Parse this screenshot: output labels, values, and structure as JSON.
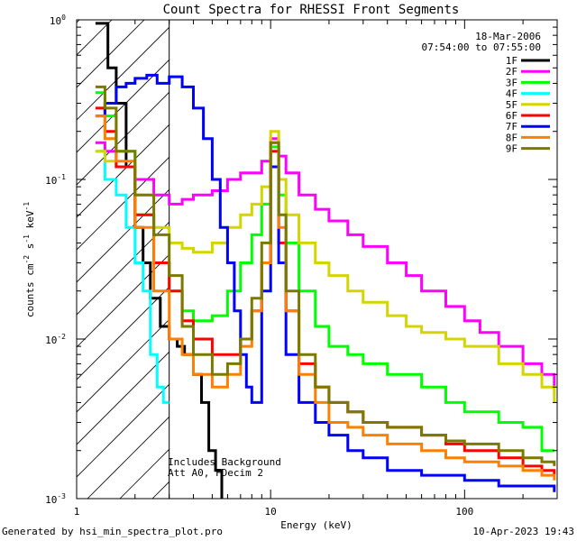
{
  "chart_data": {
    "type": "line",
    "title": "Count Spectra for RHESSI Front Segments",
    "xlabel": "Energy (keV)",
    "ylabel_parts": [
      "counts cm",
      "-2",
      " s",
      "-1",
      " keV",
      "-1"
    ],
    "xscale": "log",
    "yscale": "log",
    "xlim": [
      1.0,
      300.0
    ],
    "ylim": [
      0.001,
      1.0
    ],
    "x_ticks": [
      {
        "value": 1,
        "label": "1"
      },
      {
        "value": 10,
        "label": "10"
      },
      {
        "value": 100,
        "label": "100"
      }
    ],
    "y_ticks": [
      {
        "value": 1,
        "label": "10",
        "exp": "0"
      },
      {
        "value": 0.1,
        "label": "10",
        "exp": "-1"
      },
      {
        "value": 0.01,
        "label": "10",
        "exp": "-2"
      },
      {
        "value": 0.001,
        "label": "10",
        "exp": "-3"
      }
    ],
    "date": "18-Mar-2006",
    "time_range": "07:54:00 to 07:55:00",
    "hatched_region_keV": [
      1.0,
      3.0
    ],
    "annotations": [
      "Includes Background",
      "Att A0, FDecim 2"
    ],
    "legend_position": "top-right",
    "series": [
      {
        "name": "1F",
        "color": "#000000",
        "points": [
          [
            1.25,
            0.95
          ],
          [
            1.35,
            0.95
          ],
          [
            1.45,
            0.5
          ],
          [
            1.6,
            0.3
          ],
          [
            1.8,
            0.12
          ],
          [
            2.0,
            0.05
          ],
          [
            2.2,
            0.03
          ],
          [
            2.4,
            0.018
          ],
          [
            2.7,
            0.012
          ],
          [
            3.0,
            0.01
          ],
          [
            3.3,
            0.009
          ],
          [
            3.6,
            0.008
          ],
          [
            4.0,
            0.006
          ],
          [
            4.4,
            0.004
          ],
          [
            4.8,
            0.002
          ],
          [
            5.2,
            0.0015
          ],
          [
            5.6,
            0.001
          ]
        ]
      },
      {
        "name": "2F",
        "color": "#ff00ff",
        "points": [
          [
            1.25,
            0.17
          ],
          [
            1.4,
            0.15
          ],
          [
            1.6,
            0.12
          ],
          [
            2.0,
            0.1
          ],
          [
            2.5,
            0.08
          ],
          [
            3.0,
            0.07
          ],
          [
            3.5,
            0.075
          ],
          [
            4.0,
            0.08
          ],
          [
            5.0,
            0.085
          ],
          [
            6.0,
            0.1
          ],
          [
            7.0,
            0.11
          ],
          [
            8.0,
            0.11
          ],
          [
            9.0,
            0.13
          ],
          [
            10.0,
            0.18
          ],
          [
            11.0,
            0.14
          ],
          [
            12.0,
            0.11
          ],
          [
            14.0,
            0.08
          ],
          [
            17.0,
            0.065
          ],
          [
            20.0,
            0.055
          ],
          [
            25.0,
            0.045
          ],
          [
            30.0,
            0.038
          ],
          [
            40.0,
            0.03
          ],
          [
            50.0,
            0.025
          ],
          [
            60.0,
            0.02
          ],
          [
            80.0,
            0.016
          ],
          [
            100.0,
            0.013
          ],
          [
            120.0,
            0.011
          ],
          [
            150.0,
            0.009
          ],
          [
            200.0,
            0.007
          ],
          [
            250.0,
            0.006
          ],
          [
            290.0,
            0.005
          ]
        ]
      },
      {
        "name": "3F",
        "color": "#00ff00",
        "points": [
          [
            1.25,
            0.35
          ],
          [
            1.4,
            0.25
          ],
          [
            1.6,
            0.15
          ],
          [
            2.0,
            0.06
          ],
          [
            2.5,
            0.03
          ],
          [
            3.0,
            0.02
          ],
          [
            3.5,
            0.015
          ],
          [
            4.0,
            0.013
          ],
          [
            5.0,
            0.014
          ],
          [
            6.0,
            0.02
          ],
          [
            7.0,
            0.03
          ],
          [
            8.0,
            0.045
          ],
          [
            9.0,
            0.07
          ],
          [
            10.0,
            0.16
          ],
          [
            11.0,
            0.08
          ],
          [
            12.0,
            0.04
          ],
          [
            14.0,
            0.02
          ],
          [
            17.0,
            0.012
          ],
          [
            20.0,
            0.009
          ],
          [
            25.0,
            0.008
          ],
          [
            30.0,
            0.007
          ],
          [
            40.0,
            0.006
          ],
          [
            60.0,
            0.005
          ],
          [
            80.0,
            0.004
          ],
          [
            100.0,
            0.0035
          ],
          [
            150.0,
            0.003
          ],
          [
            200.0,
            0.0028
          ],
          [
            250.0,
            0.002
          ],
          [
            290.0,
            0.002
          ]
        ]
      },
      {
        "name": "4F",
        "color": "#00ffff",
        "points": [
          [
            1.25,
            0.15
          ],
          [
            1.4,
            0.1
          ],
          [
            1.6,
            0.08
          ],
          [
            1.8,
            0.05
          ],
          [
            2.0,
            0.03
          ],
          [
            2.2,
            0.02
          ],
          [
            2.4,
            0.008
          ],
          [
            2.6,
            0.005
          ],
          [
            2.8,
            0.004
          ],
          [
            3.0,
            0.004
          ]
        ]
      },
      {
        "name": "5F",
        "color": "#d4d400",
        "points": [
          [
            1.25,
            0.15
          ],
          [
            1.4,
            0.13
          ],
          [
            1.6,
            0.12
          ],
          [
            2.0,
            0.08
          ],
          [
            2.5,
            0.05
          ],
          [
            3.0,
            0.04
          ],
          [
            3.5,
            0.037
          ],
          [
            4.0,
            0.035
          ],
          [
            5.0,
            0.04
          ],
          [
            6.0,
            0.05
          ],
          [
            7.0,
            0.06
          ],
          [
            8.0,
            0.07
          ],
          [
            9.0,
            0.09
          ],
          [
            10.0,
            0.2
          ],
          [
            11.0,
            0.1
          ],
          [
            12.0,
            0.06
          ],
          [
            14.0,
            0.04
          ],
          [
            17.0,
            0.03
          ],
          [
            20.0,
            0.025
          ],
          [
            25.0,
            0.02
          ],
          [
            30.0,
            0.017
          ],
          [
            40.0,
            0.014
          ],
          [
            50.0,
            0.012
          ],
          [
            60.0,
            0.011
          ],
          [
            80.0,
            0.01
          ],
          [
            100.0,
            0.009
          ],
          [
            150.0,
            0.007
          ],
          [
            200.0,
            0.006
          ],
          [
            250.0,
            0.005
          ],
          [
            290.0,
            0.004
          ]
        ]
      },
      {
        "name": "6F",
        "color": "#ff0000",
        "points": [
          [
            1.25,
            0.28
          ],
          [
            1.4,
            0.2
          ],
          [
            1.6,
            0.12
          ],
          [
            2.0,
            0.06
          ],
          [
            2.5,
            0.03
          ],
          [
            3.0,
            0.02
          ],
          [
            3.5,
            0.013
          ],
          [
            4.0,
            0.01
          ],
          [
            5.0,
            0.008
          ],
          [
            6.0,
            0.008
          ],
          [
            7.0,
            0.01
          ],
          [
            8.0,
            0.015
          ],
          [
            9.0,
            0.03
          ],
          [
            10.0,
            0.15
          ],
          [
            11.0,
            0.04
          ],
          [
            12.0,
            0.015
          ],
          [
            14.0,
            0.007
          ],
          [
            17.0,
            0.005
          ],
          [
            20.0,
            0.004
          ],
          [
            25.0,
            0.0035
          ],
          [
            30.0,
            0.003
          ],
          [
            40.0,
            0.0028
          ],
          [
            60.0,
            0.0025
          ],
          [
            80.0,
            0.0022
          ],
          [
            100.0,
            0.002
          ],
          [
            150.0,
            0.0018
          ],
          [
            200.0,
            0.0016
          ],
          [
            250.0,
            0.0015
          ],
          [
            290.0,
            0.0014
          ]
        ]
      },
      {
        "name": "7F",
        "color": "#0000ff",
        "points": [
          [
            1.25,
            0.25
          ],
          [
            1.4,
            0.3
          ],
          [
            1.6,
            0.38
          ],
          [
            1.8,
            0.4
          ],
          [
            2.0,
            0.43
          ],
          [
            2.3,
            0.45
          ],
          [
            2.6,
            0.4
          ],
          [
            3.0,
            0.44
          ],
          [
            3.5,
            0.38
          ],
          [
            4.0,
            0.28
          ],
          [
            4.5,
            0.18
          ],
          [
            5.0,
            0.1
          ],
          [
            5.5,
            0.05
          ],
          [
            6.0,
            0.03
          ],
          [
            6.5,
            0.015
          ],
          [
            7.0,
            0.008
          ],
          [
            7.5,
            0.005
          ],
          [
            8.0,
            0.004
          ],
          [
            9.0,
            0.02
          ],
          [
            10.0,
            0.12
          ],
          [
            11.0,
            0.03
          ],
          [
            12.0,
            0.008
          ],
          [
            14.0,
            0.004
          ],
          [
            17.0,
            0.003
          ],
          [
            20.0,
            0.0025
          ],
          [
            25.0,
            0.002
          ],
          [
            30.0,
            0.0018
          ],
          [
            40.0,
            0.0015
          ],
          [
            60.0,
            0.0014
          ],
          [
            100.0,
            0.0013
          ],
          [
            150.0,
            0.0012
          ],
          [
            200.0,
            0.0012
          ],
          [
            290.0,
            0.0011
          ]
        ]
      },
      {
        "name": "8F",
        "color": "#ff8000",
        "points": [
          [
            1.25,
            0.25
          ],
          [
            1.4,
            0.18
          ],
          [
            1.6,
            0.13
          ],
          [
            2.0,
            0.05
          ],
          [
            2.5,
            0.02
          ],
          [
            3.0,
            0.01
          ],
          [
            3.5,
            0.008
          ],
          [
            4.0,
            0.006
          ],
          [
            5.0,
            0.005
          ],
          [
            6.0,
            0.006
          ],
          [
            7.0,
            0.009
          ],
          [
            8.0,
            0.015
          ],
          [
            9.0,
            0.03
          ],
          [
            10.0,
            0.17
          ],
          [
            11.0,
            0.05
          ],
          [
            12.0,
            0.015
          ],
          [
            14.0,
            0.006
          ],
          [
            17.0,
            0.004
          ],
          [
            20.0,
            0.003
          ],
          [
            25.0,
            0.0028
          ],
          [
            30.0,
            0.0025
          ],
          [
            40.0,
            0.0022
          ],
          [
            60.0,
            0.002
          ],
          [
            80.0,
            0.0018
          ],
          [
            100.0,
            0.0017
          ],
          [
            150.0,
            0.0016
          ],
          [
            200.0,
            0.0015
          ],
          [
            250.0,
            0.0014
          ],
          [
            290.0,
            0.0013
          ]
        ]
      },
      {
        "name": "9F",
        "color": "#7a7a00",
        "points": [
          [
            1.25,
            0.38
          ],
          [
            1.4,
            0.28
          ],
          [
            1.6,
            0.15
          ],
          [
            2.0,
            0.08
          ],
          [
            2.5,
            0.045
          ],
          [
            3.0,
            0.025
          ],
          [
            3.5,
            0.012
          ],
          [
            4.0,
            0.008
          ],
          [
            5.0,
            0.006
          ],
          [
            6.0,
            0.007
          ],
          [
            7.0,
            0.01
          ],
          [
            8.0,
            0.018
          ],
          [
            9.0,
            0.04
          ],
          [
            10.0,
            0.17
          ],
          [
            11.0,
            0.06
          ],
          [
            12.0,
            0.02
          ],
          [
            14.0,
            0.008
          ],
          [
            17.0,
            0.005
          ],
          [
            20.0,
            0.004
          ],
          [
            25.0,
            0.0035
          ],
          [
            30.0,
            0.003
          ],
          [
            40.0,
            0.0028
          ],
          [
            60.0,
            0.0025
          ],
          [
            80.0,
            0.0023
          ],
          [
            100.0,
            0.0022
          ],
          [
            150.0,
            0.002
          ],
          [
            200.0,
            0.0018
          ],
          [
            250.0,
            0.0017
          ],
          [
            290.0,
            0.0016
          ]
        ]
      }
    ]
  },
  "footer": {
    "generated_by": "Generated by hsi_min_spectra_plot.pro",
    "timestamp": "10-Apr-2023 19:43"
  }
}
